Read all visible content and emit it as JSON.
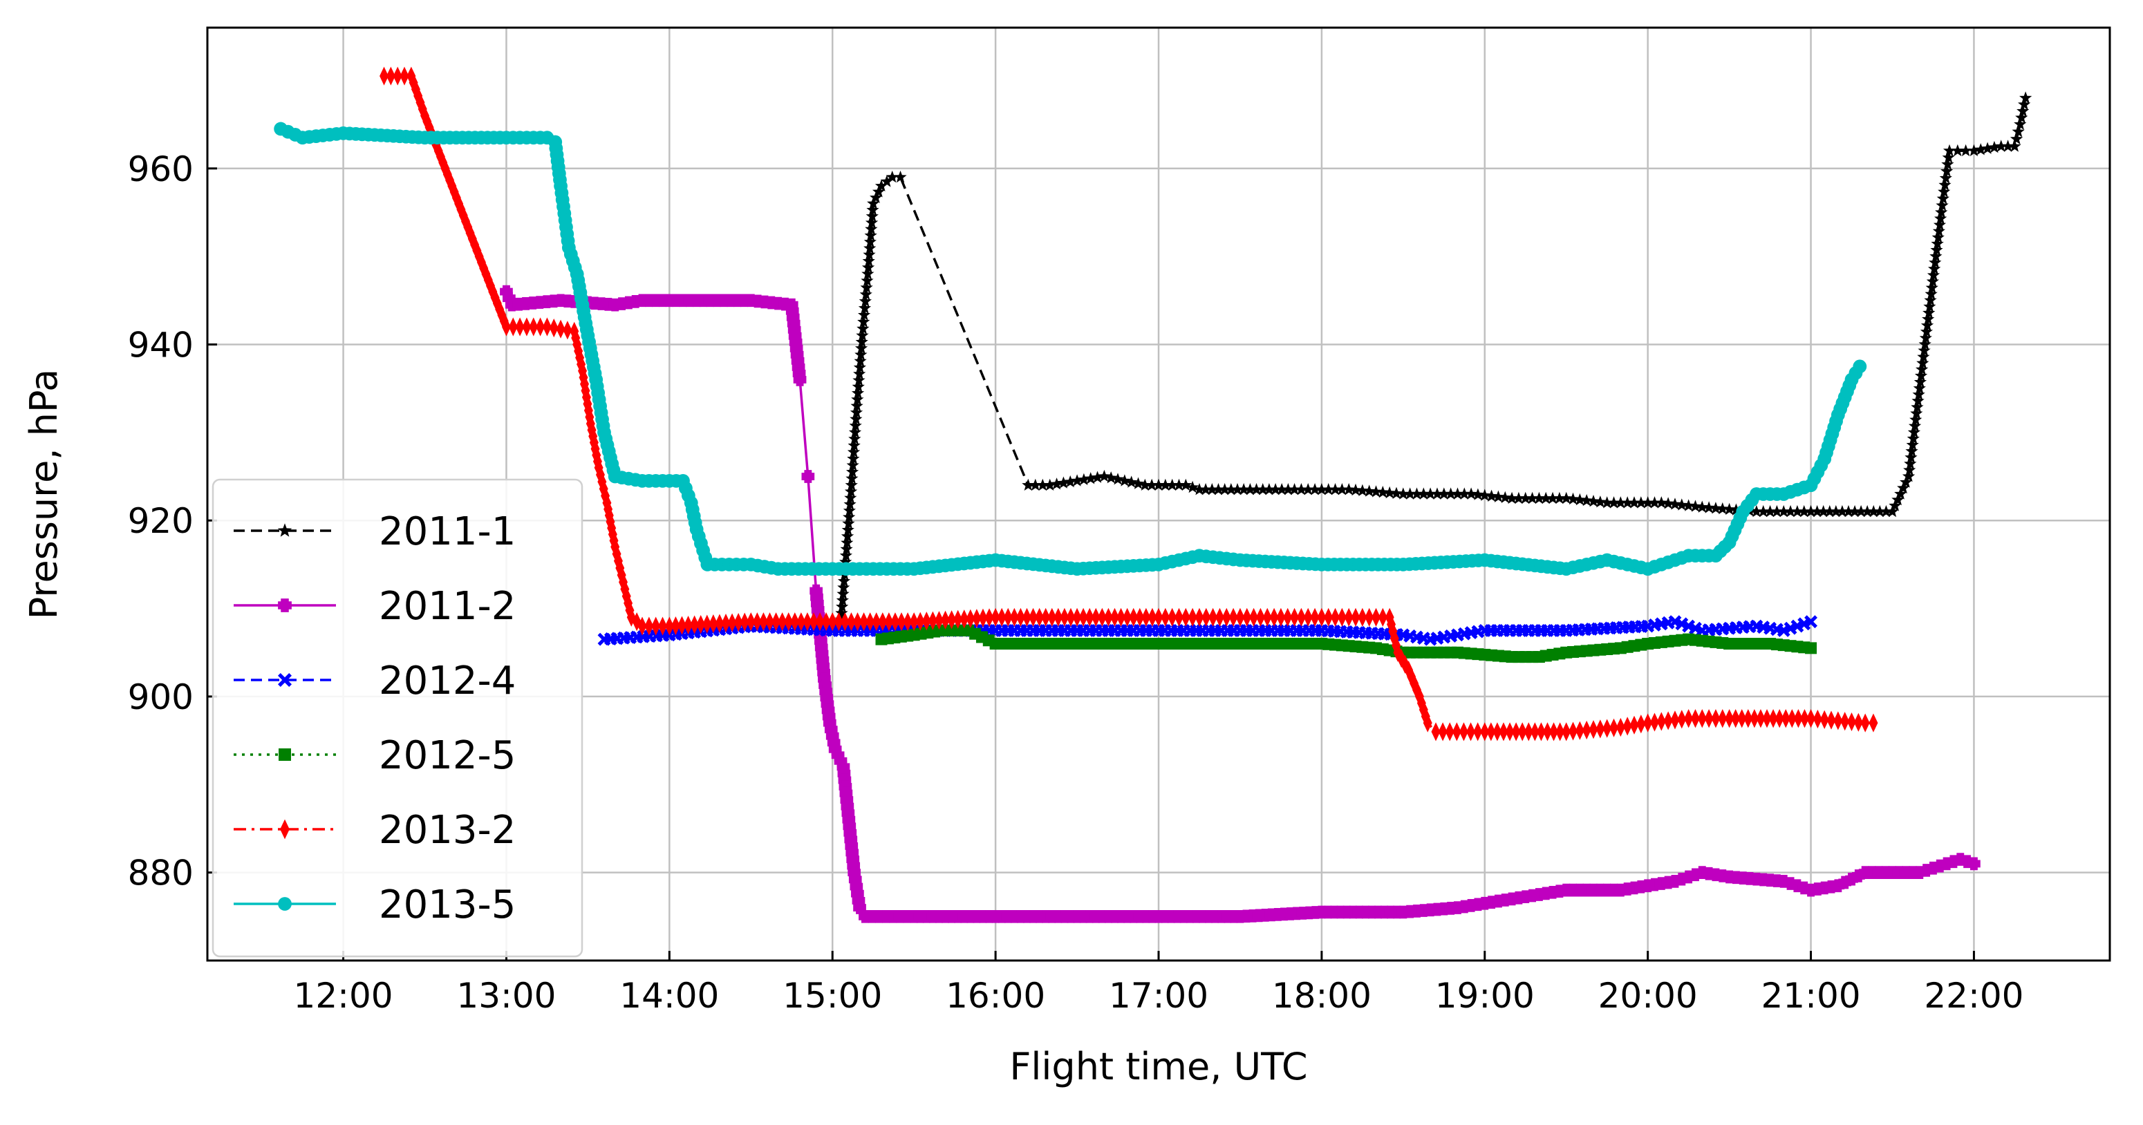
{
  "chart_data": {
    "type": "line",
    "xlabel": "Flight time, UTC",
    "ylabel": "Pressure, hPa",
    "grid": true,
    "legend_position": "bottom-left",
    "xlim": [
      "11:10",
      "22:50"
    ],
    "ylim": [
      870,
      976
    ],
    "x_ticks": [
      "12:00",
      "13:00",
      "14:00",
      "15:00",
      "16:00",
      "17:00",
      "18:00",
      "19:00",
      "20:00",
      "21:00",
      "22:00"
    ],
    "y_ticks": [
      880,
      900,
      920,
      940,
      960
    ],
    "series": [
      {
        "name": "2011-1",
        "color": "#000000",
        "dash": "dashed",
        "marker": "star",
        "points": [
          [
            "15:03",
            908
          ],
          [
            "15:05",
            916
          ],
          [
            "15:07",
            924
          ],
          [
            "15:09",
            933
          ],
          [
            "15:11",
            941
          ],
          [
            "15:13",
            948
          ],
          [
            "15:15",
            956
          ],
          [
            "15:18",
            958
          ],
          [
            "15:22",
            959
          ],
          [
            "15:25",
            959
          ],
          [
            "16:12",
            924
          ],
          [
            "16:20",
            924
          ],
          [
            "16:40",
            925
          ],
          [
            "16:55",
            924
          ],
          [
            "17:10",
            924
          ],
          [
            "17:15",
            923.5
          ],
          [
            "17:50",
            923.5
          ],
          [
            "18:10",
            923.5
          ],
          [
            "18:30",
            923
          ],
          [
            "18:55",
            923
          ],
          [
            "19:10",
            922.5
          ],
          [
            "19:30",
            922.5
          ],
          [
            "19:45",
            922
          ],
          [
            "20:05",
            922
          ],
          [
            "20:20",
            921.5
          ],
          [
            "20:40",
            921
          ],
          [
            "21:00",
            921
          ],
          [
            "21:30",
            921
          ],
          [
            "21:36",
            925
          ],
          [
            "21:40",
            935
          ],
          [
            "21:44",
            945
          ],
          [
            "21:48",
            955
          ],
          [
            "21:51",
            962
          ],
          [
            "22:00",
            962
          ],
          [
            "22:10",
            962.5
          ],
          [
            "22:15",
            962.5
          ],
          [
            "22:17",
            965
          ],
          [
            "22:19",
            968
          ]
        ]
      },
      {
        "name": "2011-2",
        "color": "#bf00bf",
        "dash": "solid",
        "marker": "plus",
        "points": [
          [
            "13:00",
            946
          ],
          [
            "13:02",
            944.5
          ],
          [
            "13:20",
            945
          ],
          [
            "13:40",
            944.5
          ],
          [
            "13:50",
            945
          ],
          [
            "14:10",
            945
          ],
          [
            "14:30",
            945
          ],
          [
            "14:45",
            944.5
          ],
          [
            "14:48",
            936
          ],
          [
            "14:51",
            925
          ],
          [
            "14:54",
            912
          ],
          [
            "14:57",
            902
          ],
          [
            "14:59",
            897
          ],
          [
            "15:01",
            894
          ],
          [
            "15:04",
            892
          ],
          [
            "15:06",
            886
          ],
          [
            "15:08",
            880
          ],
          [
            "15:10",
            876
          ],
          [
            "15:12",
            875
          ],
          [
            "15:30",
            875
          ],
          [
            "16:00",
            875
          ],
          [
            "16:30",
            875
          ],
          [
            "17:00",
            875
          ],
          [
            "17:30",
            875
          ],
          [
            "18:00",
            875.5
          ],
          [
            "18:30",
            875.5
          ],
          [
            "18:50",
            876
          ],
          [
            "19:10",
            877
          ],
          [
            "19:30",
            878
          ],
          [
            "19:50",
            878
          ],
          [
            "20:10",
            879
          ],
          [
            "20:20",
            880
          ],
          [
            "20:30",
            879.5
          ],
          [
            "20:50",
            879
          ],
          [
            "21:00",
            878
          ],
          [
            "21:10",
            878.5
          ],
          [
            "21:20",
            880
          ],
          [
            "21:40",
            880
          ],
          [
            "21:50",
            881
          ],
          [
            "21:55",
            881.5
          ],
          [
            "22:00",
            881
          ]
        ]
      },
      {
        "name": "2012-4",
        "color": "#0000ff",
        "dash": "dashed",
        "marker": "x",
        "points": [
          [
            "13:36",
            906.5
          ],
          [
            "14:00",
            907
          ],
          [
            "14:30",
            908
          ],
          [
            "15:00",
            907.5
          ],
          [
            "15:30",
            907.5
          ],
          [
            "16:00",
            907.5
          ],
          [
            "16:30",
            907.5
          ],
          [
            "17:00",
            907.5
          ],
          [
            "17:30",
            907.5
          ],
          [
            "18:00",
            907.5
          ],
          [
            "18:30",
            907
          ],
          [
            "18:40",
            906.5
          ],
          [
            "19:00",
            907.5
          ],
          [
            "19:30",
            907.5
          ],
          [
            "20:00",
            908
          ],
          [
            "20:10",
            908.5
          ],
          [
            "20:20",
            907.5
          ],
          [
            "20:40",
            908
          ],
          [
            "20:50",
            907.5
          ],
          [
            "21:00",
            908.5
          ]
        ]
      },
      {
        "name": "2012-5",
        "color": "#008000",
        "dash": "dotted",
        "marker": "square",
        "points": [
          [
            "15:18",
            906.5
          ],
          [
            "15:30",
            907
          ],
          [
            "15:40",
            907.5
          ],
          [
            "15:50",
            907.5
          ],
          [
            "16:00",
            906
          ],
          [
            "16:30",
            906
          ],
          [
            "17:00",
            906
          ],
          [
            "17:30",
            906
          ],
          [
            "18:00",
            906
          ],
          [
            "18:20",
            905.5
          ],
          [
            "18:30",
            905
          ],
          [
            "18:50",
            905
          ],
          [
            "19:10",
            904.5
          ],
          [
            "19:20",
            904.5
          ],
          [
            "19:30",
            905
          ],
          [
            "19:50",
            905.5
          ],
          [
            "20:00",
            906
          ],
          [
            "20:15",
            906.5
          ],
          [
            "20:30",
            906
          ],
          [
            "20:45",
            906
          ],
          [
            "21:00",
            905.5
          ]
        ]
      },
      {
        "name": "2013-2",
        "color": "#ff0000",
        "dash": "dashdot",
        "marker": "thin_diamond",
        "points": [
          [
            "12:15",
            970.5
          ],
          [
            "12:25",
            970.5
          ],
          [
            "12:30",
            966
          ],
          [
            "12:35",
            962
          ],
          [
            "12:40",
            958
          ],
          [
            "12:45",
            954
          ],
          [
            "12:50",
            950
          ],
          [
            "12:55",
            946
          ],
          [
            "13:00",
            942
          ],
          [
            "13:10",
            942
          ],
          [
            "13:15",
            942
          ],
          [
            "13:25",
            941.5
          ],
          [
            "13:28",
            937
          ],
          [
            "13:31",
            931
          ],
          [
            "13:34",
            926
          ],
          [
            "13:37",
            922
          ],
          [
            "13:40",
            917
          ],
          [
            "13:43",
            913
          ],
          [
            "13:46",
            909
          ],
          [
            "13:50",
            908
          ],
          [
            "14:00",
            908
          ],
          [
            "14:30",
            908.5
          ],
          [
            "15:00",
            908.5
          ],
          [
            "15:30",
            908.5
          ],
          [
            "16:00",
            909
          ],
          [
            "16:30",
            909
          ],
          [
            "17:00",
            909
          ],
          [
            "17:20",
            909
          ],
          [
            "17:40",
            909
          ],
          [
            "18:00",
            909
          ],
          [
            "18:25",
            909
          ],
          [
            "18:28",
            905
          ],
          [
            "18:32",
            903
          ],
          [
            "18:36",
            900
          ],
          [
            "18:39",
            897
          ],
          [
            "18:42",
            896
          ],
          [
            "19:00",
            896
          ],
          [
            "19:30",
            896
          ],
          [
            "19:50",
            896.5
          ],
          [
            "20:00",
            897
          ],
          [
            "20:15",
            897.5
          ],
          [
            "20:30",
            897.5
          ],
          [
            "21:00",
            897.5
          ],
          [
            "21:20",
            897
          ],
          [
            "21:23",
            897
          ]
        ]
      },
      {
        "name": "2013-5",
        "color": "#00bfbf",
        "dash": "solid",
        "marker": "circle",
        "points": [
          [
            "11:37",
            964.5
          ],
          [
            "11:45",
            963.5
          ],
          [
            "12:00",
            964
          ],
          [
            "12:30",
            963.5
          ],
          [
            "13:00",
            963.5
          ],
          [
            "13:15",
            963.5
          ],
          [
            "13:18",
            963
          ],
          [
            "13:20",
            958
          ],
          [
            "13:23",
            951
          ],
          [
            "13:26",
            948
          ],
          [
            "13:30",
            941
          ],
          [
            "13:33",
            936
          ],
          [
            "13:36",
            930
          ],
          [
            "13:40",
            925
          ],
          [
            "13:50",
            924.5
          ],
          [
            "14:05",
            924.5
          ],
          [
            "14:08",
            922
          ],
          [
            "14:10",
            919
          ],
          [
            "14:14",
            915
          ],
          [
            "14:30",
            915
          ],
          [
            "14:40",
            914.5
          ],
          [
            "15:00",
            914.5
          ],
          [
            "15:20",
            914.5
          ],
          [
            "15:30",
            914.5
          ],
          [
            "16:00",
            915.5
          ],
          [
            "16:30",
            914.5
          ],
          [
            "17:00",
            915
          ],
          [
            "17:15",
            916
          ],
          [
            "17:30",
            915.5
          ],
          [
            "18:00",
            915
          ],
          [
            "18:30",
            915
          ],
          [
            "19:00",
            915.5
          ],
          [
            "19:30",
            914.5
          ],
          [
            "19:45",
            915.5
          ],
          [
            "20:00",
            914.5
          ],
          [
            "20:15",
            916
          ],
          [
            "20:25",
            916
          ],
          [
            "20:30",
            917.5
          ],
          [
            "20:35",
            921
          ],
          [
            "20:40",
            923
          ],
          [
            "20:50",
            923
          ],
          [
            "21:00",
            924
          ],
          [
            "21:05",
            927
          ],
          [
            "21:10",
            932
          ],
          [
            "21:15",
            936
          ],
          [
            "21:18",
            937.5
          ]
        ]
      }
    ]
  }
}
